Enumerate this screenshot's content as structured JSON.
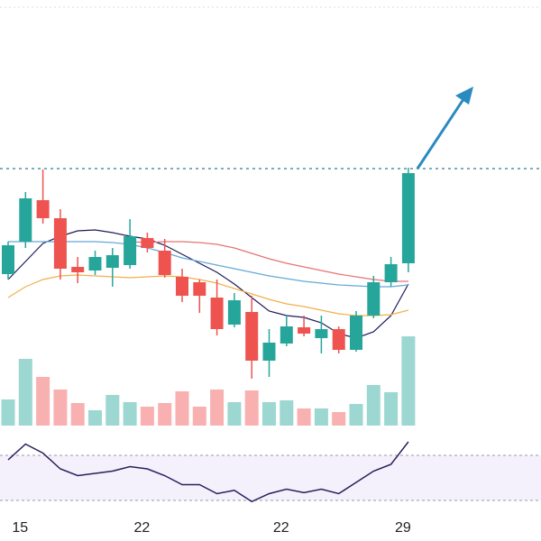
{
  "chart_data": {
    "type": "candlestick",
    "categories": [
      null,
      "15",
      null,
      null,
      null,
      null,
      null,
      null,
      "22",
      null,
      null,
      null,
      null,
      null,
      null,
      null,
      "22",
      null,
      null,
      null,
      null,
      null,
      null,
      "29"
    ],
    "open": [
      296,
      332,
      378,
      358,
      304,
      300,
      303,
      306,
      336,
      322,
      293,
      287,
      270,
      240,
      254,
      200,
      219,
      237,
      225,
      235,
      212,
      250,
      287,
      308
    ],
    "close": [
      328,
      380,
      358,
      302,
      298,
      315,
      317,
      338,
      325,
      295,
      272,
      272,
      235,
      267,
      200,
      220,
      238,
      230,
      235,
      212,
      250,
      287,
      307,
      408
    ],
    "high": [
      332,
      387,
      412,
      368,
      315,
      322,
      325,
      357,
      342,
      335,
      302,
      290,
      290,
      275,
      272,
      235,
      250,
      250,
      250,
      238,
      255,
      294,
      315,
      414
    ],
    "low": [
      290,
      325,
      352,
      290,
      286,
      295,
      282,
      302,
      320,
      292,
      265,
      253,
      228,
      237,
      180,
      182,
      216,
      227,
      208,
      208,
      210,
      247,
      282,
      298
    ],
    "ylim": [
      140,
      600
    ],
    "up_color": "#26a69a",
    "down_color": "#ef5350",
    "moving_averages": [
      {
        "color": "#1c1c5c",
        "values": [
          290,
          310,
          330,
          338,
          344,
          345,
          342,
          338,
          335,
          328,
          318,
          308,
          298,
          285,
          270,
          255,
          250,
          248,
          242,
          230,
          225,
          232,
          250,
          285
        ]
      },
      {
        "color": "#e57373",
        "values": [
          null,
          null,
          null,
          null,
          null,
          null,
          null,
          332,
          331,
          332,
          332,
          331,
          329,
          325,
          319,
          313,
          308,
          304,
          300,
          296,
          293,
          290,
          288,
          288
        ]
      },
      {
        "color": "#64a8d8",
        "values": [
          332,
          332,
          332,
          332,
          332,
          332,
          331,
          329,
          325,
          320,
          314,
          310,
          306,
          302,
          298,
          294,
          291,
          288,
          286,
          284,
          283,
          282,
          282,
          284
        ]
      },
      {
        "color": "#f0b04c",
        "values": [
          270,
          282,
          290,
          294,
          295,
          294,
          293,
          292,
          293,
          294,
          293,
          290,
          286,
          280,
          274,
          268,
          263,
          260,
          256,
          252,
          250,
          250,
          251,
          256
        ]
      }
    ],
    "volume": [
      29,
      74,
      54,
      40,
      25,
      17,
      34,
      26,
      21,
      25,
      38,
      21,
      40,
      26,
      39,
      26,
      28,
      19,
      19,
      15,
      24,
      45,
      37,
      99
    ],
    "volume_ylim": [
      0,
      100
    ],
    "rsi": [
      66,
      80,
      72,
      58,
      52,
      54,
      56,
      60,
      58,
      52,
      44,
      44,
      36,
      39,
      29,
      36,
      40,
      37,
      40,
      36,
      46,
      56,
      62,
      82
    ],
    "rsi_ylim": [
      0,
      100
    ],
    "rsi_levels": [
      30,
      70
    ],
    "rsi_color": "#2a1f5c",
    "level": 413,
    "level_color": "#2a7f86"
  }
}
